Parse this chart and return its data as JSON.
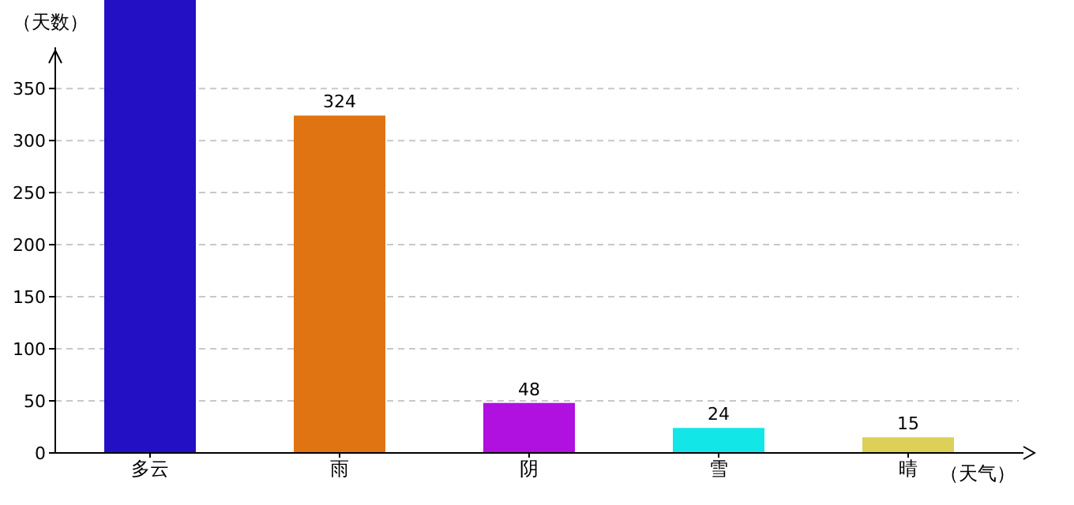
{
  "chart_data": {
    "type": "bar",
    "xlabel": "（天气）",
    "ylabel": "（天数）",
    "categories": [
      "多云",
      "雨",
      "阴",
      "雪",
      "晴"
    ],
    "values": [
      435,
      324,
      48,
      24,
      15
    ],
    "colors": [
      "#2410c4",
      "#e07412",
      "#b010e0",
      "#12e6e6",
      "#dcd058"
    ],
    "value_labels": [
      null,
      "324",
      "48",
      "24",
      "15"
    ],
    "ylim": [
      0,
      435
    ],
    "yticks": [
      0,
      50,
      100,
      150,
      200,
      250,
      300,
      350
    ],
    "grid": "y"
  }
}
